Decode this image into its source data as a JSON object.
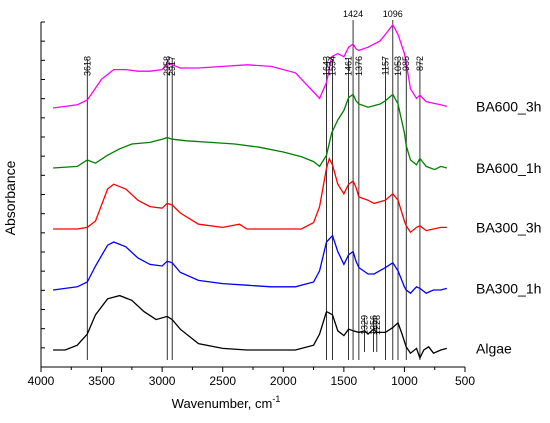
{
  "chart_data": {
    "type": "line",
    "title": "",
    "xlabel": "Wavenumber, cm",
    "xlabel_superscript": "-1",
    "ylabel": "Absorbance",
    "xlim": [
      4000,
      500
    ],
    "x_reversed": true,
    "x_ticks": [
      4000,
      3500,
      3000,
      2500,
      2000,
      1500,
      1000,
      500
    ],
    "y_ticks_labeled": false,
    "y_tick_count": 18,
    "grid": false,
    "legend": "none (series labeled at right end of each curve)",
    "x_range_data": [
      3900,
      650
    ],
    "series": [
      {
        "name": "BA600_3h",
        "color": "#ff00ff",
        "offset": 4.0,
        "points": [
          [
            3900,
            0.0
          ],
          [
            3700,
            0.02
          ],
          [
            3618,
            0.05
          ],
          [
            3500,
            0.18
          ],
          [
            3400,
            0.24
          ],
          [
            3300,
            0.24
          ],
          [
            3200,
            0.23
          ],
          [
            3100,
            0.23
          ],
          [
            3000,
            0.24
          ],
          [
            2958,
            0.28
          ],
          [
            2917,
            0.27
          ],
          [
            2850,
            0.25
          ],
          [
            2700,
            0.25
          ],
          [
            2500,
            0.26
          ],
          [
            2300,
            0.27
          ],
          [
            2100,
            0.26
          ],
          [
            1900,
            0.22
          ],
          [
            1750,
            0.1
          ],
          [
            1700,
            0.06
          ],
          [
            1643,
            0.16
          ],
          [
            1600,
            0.32
          ],
          [
            1550,
            0.34
          ],
          [
            1500,
            0.32
          ],
          [
            1461,
            0.38
          ],
          [
            1424,
            0.4
          ],
          [
            1400,
            0.37
          ],
          [
            1376,
            0.36
          ],
          [
            1300,
            0.38
          ],
          [
            1200,
            0.42
          ],
          [
            1157,
            0.46
          ],
          [
            1096,
            0.52
          ],
          [
            1053,
            0.46
          ],
          [
            1000,
            0.34
          ],
          [
            985,
            0.28
          ],
          [
            950,
            0.12
          ],
          [
            900,
            0.06
          ],
          [
            872,
            0.08
          ],
          [
            820,
            0.04
          ],
          [
            760,
            0.03
          ],
          [
            700,
            0.02
          ],
          [
            650,
            0.01
          ]
        ]
      },
      {
        "name": "BA600_1h",
        "color": "#008000",
        "offset": 3.0,
        "points": [
          [
            3900,
            0.0
          ],
          [
            3700,
            0.01
          ],
          [
            3618,
            0.05
          ],
          [
            3550,
            0.03
          ],
          [
            3450,
            0.08
          ],
          [
            3350,
            0.12
          ],
          [
            3250,
            0.15
          ],
          [
            3100,
            0.16
          ],
          [
            3000,
            0.18
          ],
          [
            2958,
            0.19
          ],
          [
            2917,
            0.18
          ],
          [
            2800,
            0.17
          ],
          [
            2600,
            0.16
          ],
          [
            2400,
            0.15
          ],
          [
            2200,
            0.13
          ],
          [
            2000,
            0.1
          ],
          [
            1850,
            0.07
          ],
          [
            1750,
            0.04
          ],
          [
            1700,
            0.01
          ],
          [
            1643,
            0.08
          ],
          [
            1600,
            0.22
          ],
          [
            1550,
            0.3
          ],
          [
            1500,
            0.36
          ],
          [
            1461,
            0.44
          ],
          [
            1424,
            0.46
          ],
          [
            1400,
            0.42
          ],
          [
            1376,
            0.4
          ],
          [
            1300,
            0.38
          ],
          [
            1200,
            0.4
          ],
          [
            1157,
            0.42
          ],
          [
            1096,
            0.46
          ],
          [
            1053,
            0.4
          ],
          [
            1000,
            0.22
          ],
          [
            985,
            0.14
          ],
          [
            950,
            0.05
          ],
          [
            900,
            0.02
          ],
          [
            872,
            0.06
          ],
          [
            820,
            0.01
          ],
          [
            750,
            -0.01
          ],
          [
            700,
            0.01
          ],
          [
            650,
            0.0
          ]
        ]
      },
      {
        "name": "BA300_3h",
        "color": "#ff0000",
        "offset": 2.0,
        "points": [
          [
            3900,
            0.0
          ],
          [
            3700,
            0.0
          ],
          [
            3618,
            0.01
          ],
          [
            3550,
            0.05
          ],
          [
            3450,
            0.25
          ],
          [
            3400,
            0.28
          ],
          [
            3300,
            0.25
          ],
          [
            3200,
            0.18
          ],
          [
            3100,
            0.14
          ],
          [
            3000,
            0.13
          ],
          [
            2958,
            0.16
          ],
          [
            2917,
            0.15
          ],
          [
            2850,
            0.1
          ],
          [
            2700,
            0.03
          ],
          [
            2500,
            0.01
          ],
          [
            2362,
            0.03
          ],
          [
            2300,
            0.0
          ],
          [
            2000,
            0.0
          ],
          [
            1850,
            0.0
          ],
          [
            1750,
            0.04
          ],
          [
            1700,
            0.14
          ],
          [
            1643,
            0.38
          ],
          [
            1620,
            0.44
          ],
          [
            1594,
            0.4
          ],
          [
            1550,
            0.28
          ],
          [
            1500,
            0.22
          ],
          [
            1461,
            0.28
          ],
          [
            1424,
            0.3
          ],
          [
            1400,
            0.26
          ],
          [
            1376,
            0.2
          ],
          [
            1300,
            0.18
          ],
          [
            1250,
            0.16
          ],
          [
            1157,
            0.18
          ],
          [
            1096,
            0.22
          ],
          [
            1053,
            0.18
          ],
          [
            1000,
            0.05
          ],
          [
            985,
            0.02
          ],
          [
            950,
            -0.02
          ],
          [
            900,
            0.01
          ],
          [
            872,
            0.02
          ],
          [
            820,
            -0.01
          ],
          [
            760,
            0.0
          ],
          [
            700,
            0.01
          ],
          [
            650,
            0.01
          ]
        ]
      },
      {
        "name": "BA300_1h",
        "color": "#0000ff",
        "offset": 1.0,
        "points": [
          [
            3900,
            0.0
          ],
          [
            3700,
            0.02
          ],
          [
            3618,
            0.05
          ],
          [
            3550,
            0.15
          ],
          [
            3450,
            0.28
          ],
          [
            3400,
            0.3
          ],
          [
            3300,
            0.27
          ],
          [
            3200,
            0.2
          ],
          [
            3100,
            0.16
          ],
          [
            3000,
            0.15
          ],
          [
            2958,
            0.18
          ],
          [
            2917,
            0.17
          ],
          [
            2850,
            0.11
          ],
          [
            2700,
            0.06
          ],
          [
            2500,
            0.04
          ],
          [
            2300,
            0.03
          ],
          [
            2100,
            0.02
          ],
          [
            1900,
            0.02
          ],
          [
            1750,
            0.05
          ],
          [
            1700,
            0.12
          ],
          [
            1643,
            0.3
          ],
          [
            1594,
            0.34
          ],
          [
            1550,
            0.24
          ],
          [
            1500,
            0.16
          ],
          [
            1461,
            0.22
          ],
          [
            1424,
            0.24
          ],
          [
            1400,
            0.18
          ],
          [
            1376,
            0.14
          ],
          [
            1300,
            0.1
          ],
          [
            1250,
            0.1
          ],
          [
            1157,
            0.14
          ],
          [
            1096,
            0.17
          ],
          [
            1053,
            0.12
          ],
          [
            1000,
            0.02
          ],
          [
            985,
            0.0
          ],
          [
            950,
            -0.02
          ],
          [
            900,
            0.02
          ],
          [
            872,
            0.01
          ],
          [
            820,
            -0.02
          ],
          [
            760,
            0.0
          ],
          [
            700,
            0.0
          ],
          [
            650,
            0.01
          ]
        ]
      },
      {
        "name": "Algae",
        "color": "#000000",
        "offset": 0.0,
        "points": [
          [
            3900,
            0.0
          ],
          [
            3800,
            0.0
          ],
          [
            3700,
            0.03
          ],
          [
            3618,
            0.1
          ],
          [
            3550,
            0.22
          ],
          [
            3450,
            0.32
          ],
          [
            3350,
            0.34
          ],
          [
            3250,
            0.31
          ],
          [
            3150,
            0.24
          ],
          [
            3050,
            0.19
          ],
          [
            2958,
            0.21
          ],
          [
            2917,
            0.19
          ],
          [
            2850,
            0.13
          ],
          [
            2700,
            0.04
          ],
          [
            2500,
            0.01
          ],
          [
            2300,
            0.0
          ],
          [
            2100,
            0.0
          ],
          [
            1900,
            0.0
          ],
          [
            1750,
            0.03
          ],
          [
            1700,
            0.1
          ],
          [
            1643,
            0.24
          ],
          [
            1594,
            0.22
          ],
          [
            1550,
            0.12
          ],
          [
            1500,
            0.09
          ],
          [
            1461,
            0.13
          ],
          [
            1424,
            0.12
          ],
          [
            1376,
            0.11
          ],
          [
            1329,
            0.12
          ],
          [
            1300,
            0.1
          ],
          [
            1256,
            0.13
          ],
          [
            1228,
            0.11
          ],
          [
            1157,
            0.11
          ],
          [
            1096,
            0.14
          ],
          [
            1053,
            0.17
          ],
          [
            1020,
            0.1
          ],
          [
            985,
            0.02
          ],
          [
            950,
            -0.02
          ],
          [
            900,
            0.01
          ],
          [
            872,
            -0.05
          ],
          [
            840,
            0.0
          ],
          [
            800,
            0.02
          ],
          [
            760,
            -0.02
          ],
          [
            700,
            0.0
          ],
          [
            650,
            0.01
          ]
        ]
      }
    ],
    "peak_markers": [
      {
        "label": "3618",
        "x": 3618
      },
      {
        "label": "2958",
        "x": 2958
      },
      {
        "label": "2917",
        "x": 2917
      },
      {
        "label": "1643",
        "x": 1643
      },
      {
        "label": "1594",
        "x": 1594
      },
      {
        "label": "1461",
        "x": 1461
      },
      {
        "label": "1424",
        "x": 1424
      },
      {
        "label": "1376",
        "x": 1376
      },
      {
        "label": "1157",
        "x": 1157
      },
      {
        "label": "1096",
        "x": 1096
      },
      {
        "label": "1053",
        "x": 1053
      },
      {
        "label": "985",
        "x": 985
      },
      {
        "label": "872",
        "x": 872
      }
    ],
    "minor_peak_markers": [
      {
        "label": "1329",
        "x": 1329
      },
      {
        "label": "1256",
        "x": 1256
      },
      {
        "label": "1228",
        "x": 1228
      }
    ]
  }
}
